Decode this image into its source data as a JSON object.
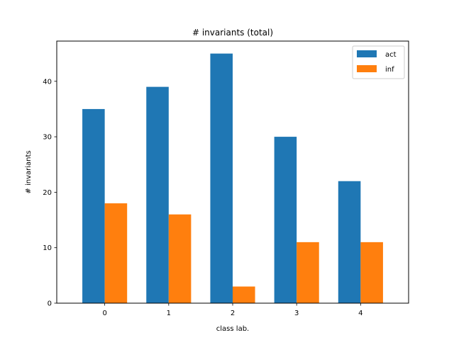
{
  "chart_data": {
    "type": "bar",
    "title": "# invariants (total)",
    "xlabel": "class lab.",
    "ylabel": "# invariants",
    "categories": [
      "0",
      "1",
      "2",
      "3",
      "4"
    ],
    "series": [
      {
        "name": "act",
        "values": [
          35,
          39,
          45,
          30,
          22
        ],
        "color": "#1f77b4"
      },
      {
        "name": "inf",
        "values": [
          18,
          16,
          3,
          11,
          11
        ],
        "color": "#ff7f0e"
      }
    ],
    "ylim": [
      0,
      47.25
    ],
    "yticks": [
      "0",
      "10",
      "20",
      "30",
      "40"
    ],
    "grid": false,
    "legend_position": "top-right"
  }
}
